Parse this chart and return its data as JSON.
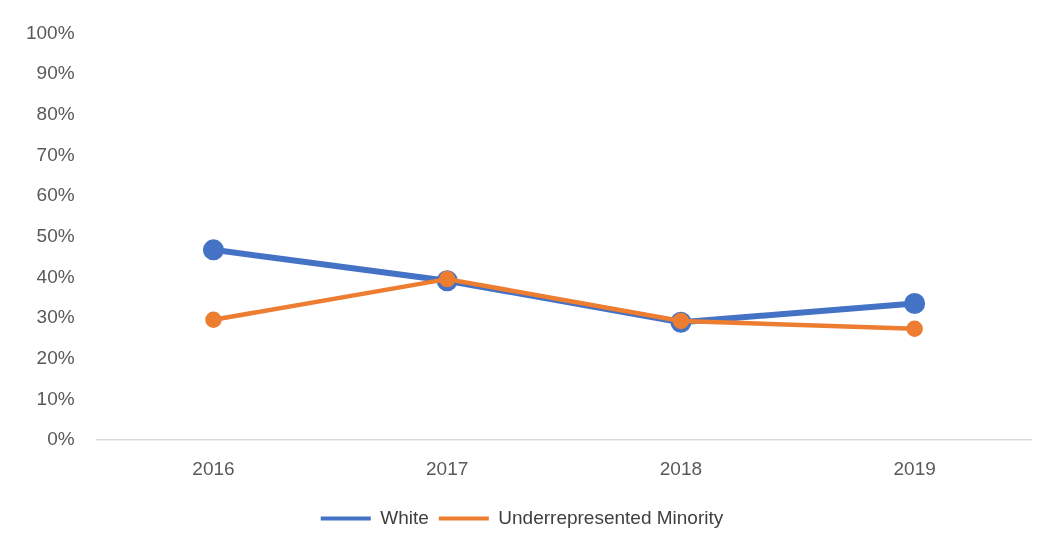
{
  "chart_data": {
    "type": "line",
    "categories": [
      "2016",
      "2017",
      "2018",
      "2019"
    ],
    "series": [
      {
        "name": "White",
        "color": "#4472c4",
        "values": [
          46.8,
          39.2,
          29.0,
          33.6
        ]
      },
      {
        "name": "Underrepresented Minority",
        "color": "#ed7d31",
        "values": [
          29.6,
          39.6,
          29.3,
          27.4
        ]
      }
    ],
    "ylim": [
      0,
      100
    ],
    "yticks": [
      {
        "value": 0,
        "label": "0%"
      },
      {
        "value": 10,
        "label": "10%"
      },
      {
        "value": 20,
        "label": "20%"
      },
      {
        "value": 30,
        "label": "30%"
      },
      {
        "value": 40,
        "label": "40%"
      },
      {
        "value": 50,
        "label": "50%"
      },
      {
        "value": 60,
        "label": "60%"
      },
      {
        "value": 70,
        "label": "70%"
      },
      {
        "value": 80,
        "label": "80%"
      },
      {
        "value": 90,
        "label": "90%"
      },
      {
        "value": 100,
        "label": "100%"
      }
    ],
    "grid": false,
    "legend": "bottom",
    "marker": "circle",
    "line_style": "solid"
  }
}
